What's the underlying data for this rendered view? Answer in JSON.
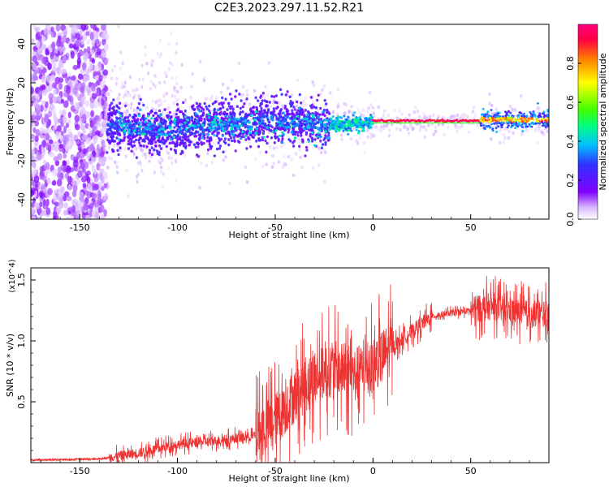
{
  "title": "C2E3.2023.297.11.52.R21",
  "chart_data": [
    {
      "type": "heatmap",
      "xlabel": "Height of straight line (km)",
      "ylabel": "Frequency (Hz)",
      "xlim": [
        -175,
        90
      ],
      "ylim": [
        -50,
        50
      ],
      "x_ticks": [
        -150,
        -100,
        -50,
        0,
        50
      ],
      "y_ticks": [
        -40,
        -20,
        0,
        20,
        40
      ],
      "grid": false,
      "colorbar": {
        "label": "Normalized spectral amplitude",
        "range": [
          0,
          1
        ],
        "ticks": [
          "0.0",
          "0.2",
          "0.4",
          "0.6",
          "0.8"
        ],
        "colors": [
          "#ffffff",
          "#d9b8ff",
          "#8000ff",
          "#3030ff",
          "#00c0ff",
          "#00ff80",
          "#40ff00",
          "#ffff00",
          "#ff8000",
          "#ff0040",
          "#ff0080"
        ]
      },
      "regions": [
        {
          "x_range": [
            -175,
            -136
          ],
          "freq_spread": 50,
          "amplitude": "scattered 0.0-0.3"
        },
        {
          "x_range": [
            -136,
            -22
          ],
          "freq_spread": 10,
          "amplitude": "0.2-0.5"
        },
        {
          "x_range": [
            -22,
            0
          ],
          "freq_spread": 4,
          "amplitude": "0.4-0.7"
        },
        {
          "x_range": [
            0,
            55
          ],
          "freq_spread": 1,
          "amplitude": "0.8-1.0"
        },
        {
          "x_range": [
            55,
            90
          ],
          "freq_spread": 4,
          "amplitude": "0.5-0.9"
        }
      ]
    },
    {
      "type": "line",
      "xlabel": "Height of straight line (km)",
      "ylabel": "SNR (10 * v/v)",
      "y_scale_label": "(x10^4)",
      "xlim": [
        -175,
        90
      ],
      "ylim": [
        0,
        1.6
      ],
      "x_ticks": [
        -150,
        -100,
        -50,
        0,
        50
      ],
      "y_ticks": [
        "0.5",
        "1.0",
        "1.5"
      ],
      "series_color": "#ee3333",
      "envelope": [
        {
          "x": -175,
          "y": 0.02
        },
        {
          "x": -140,
          "y": 0.03
        },
        {
          "x": -120,
          "y": 0.08
        },
        {
          "x": -100,
          "y": 0.15
        },
        {
          "x": -80,
          "y": 0.18
        },
        {
          "x": -60,
          "y": 0.22
        },
        {
          "x": -50,
          "y": 0.35
        },
        {
          "x": -40,
          "y": 0.55
        },
        {
          "x": -30,
          "y": 0.7
        },
        {
          "x": -20,
          "y": 0.78
        },
        {
          "x": -10,
          "y": 0.72
        },
        {
          "x": 0,
          "y": 0.8
        },
        {
          "x": 10,
          "y": 0.95
        },
        {
          "x": 20,
          "y": 1.08
        },
        {
          "x": 30,
          "y": 1.2
        },
        {
          "x": 40,
          "y": 1.23
        },
        {
          "x": 50,
          "y": 1.25
        },
        {
          "x": 60,
          "y": 1.28
        },
        {
          "x": 70,
          "y": 1.25
        },
        {
          "x": 80,
          "y": 1.22
        },
        {
          "x": 90,
          "y": 1.22
        }
      ]
    }
  ]
}
